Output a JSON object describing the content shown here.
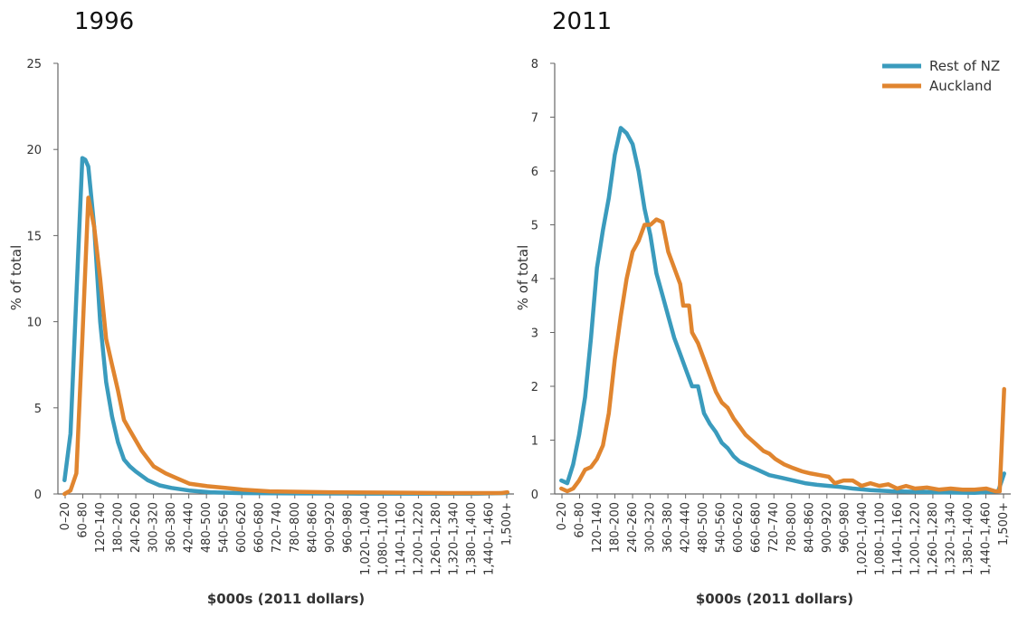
{
  "legend": {
    "entries": [
      {
        "label": "Rest of NZ",
        "color": "#3a9bbd"
      },
      {
        "label": "Auckland",
        "color": "#e0852f"
      }
    ]
  },
  "chart_data": [
    {
      "type": "line",
      "title": "1996",
      "xlabel": "$000s (2011 dollars)",
      "ylabel": "% of total",
      "ylim": [
        0,
        25
      ],
      "yticks": [
        0,
        5,
        10,
        15,
        20,
        25
      ],
      "tick_labels": [
        "0–20",
        "60–80",
        "120–140",
        "180–200",
        "240–260",
        "300–320",
        "360–380",
        "420–440",
        "480–500",
        "540–560",
        "600–620",
        "660–680",
        "720–740",
        "780–800",
        "840–860",
        "900–920",
        "960–980",
        "1,020–1,040",
        "1,080–1,100",
        "1,140–1,160",
        "1,200–1,220",
        "1,260–1,280",
        "1,320–1,340",
        "1,380–1,400",
        "1,440–1,460",
        "1,500+"
      ],
      "grid": false,
      "series": [
        {
          "name": "Rest of NZ",
          "color": "#3a9bbd",
          "points": [
            [
              10,
              0.8
            ],
            [
              30,
              3.5
            ],
            [
              50,
              11.5
            ],
            [
              70,
              19.5
            ],
            [
              80,
              19.4
            ],
            [
              90,
              19.0
            ],
            [
              110,
              15.5
            ],
            [
              130,
              10.0
            ],
            [
              150,
              6.5
            ],
            [
              170,
              4.5
            ],
            [
              190,
              3.0
            ],
            [
              210,
              2.0
            ],
            [
              230,
              1.6
            ],
            [
              250,
              1.3
            ],
            [
              290,
              0.8
            ],
            [
              330,
              0.5
            ],
            [
              370,
              0.35
            ],
            [
              430,
              0.2
            ],
            [
              500,
              0.1
            ],
            [
              600,
              0.05
            ],
            [
              800,
              0.03
            ],
            [
              1000,
              0.02
            ],
            [
              1200,
              0.02
            ],
            [
              1400,
              0.02
            ],
            [
              1500,
              0.05
            ]
          ]
        },
        {
          "name": "Auckland",
          "color": "#e0852f",
          "points": [
            [
              10,
              0.0
            ],
            [
              30,
              0.2
            ],
            [
              50,
              1.2
            ],
            [
              70,
              9.0
            ],
            [
              90,
              17.2
            ],
            [
              110,
              15.5
            ],
            [
              130,
              12.5
            ],
            [
              150,
              9.0
            ],
            [
              170,
              7.5
            ],
            [
              190,
              6.0
            ],
            [
              210,
              4.3
            ],
            [
              230,
              3.7
            ],
            [
              270,
              2.5
            ],
            [
              310,
              1.6
            ],
            [
              350,
              1.2
            ],
            [
              390,
              0.9
            ],
            [
              430,
              0.6
            ],
            [
              490,
              0.45
            ],
            [
              550,
              0.35
            ],
            [
              610,
              0.25
            ],
            [
              700,
              0.15
            ],
            [
              900,
              0.1
            ],
            [
              1100,
              0.08
            ],
            [
              1300,
              0.05
            ],
            [
              1480,
              0.05
            ],
            [
              1500,
              0.1
            ]
          ]
        }
      ]
    },
    {
      "type": "line",
      "title": "2011",
      "xlabel": "$000s (2011 dollars)",
      "ylabel": "% of total",
      "ylim": [
        0,
        8
      ],
      "yticks": [
        0,
        1,
        2,
        3,
        4,
        5,
        6,
        7,
        8
      ],
      "tick_labels": [
        "0–20",
        "60–80",
        "120–140",
        "180–200",
        "240–260",
        "300–320",
        "360–380",
        "420–440",
        "480–500",
        "540–560",
        "600–620",
        "660–680",
        "720–740",
        "780–800",
        "840–860",
        "900–920",
        "960–980",
        "1,020–1,040",
        "1,080–1,100",
        "1,140–1,160",
        "1,200–1,220",
        "1,260–1,280",
        "1,320–1,340",
        "1,380–1,400",
        "1,440–1,460",
        "1,500+"
      ],
      "grid": false,
      "legend_position": "top-right",
      "series": [
        {
          "name": "Rest of NZ",
          "color": "#3a9bbd",
          "points": [
            [
              10,
              0.25
            ],
            [
              30,
              0.2
            ],
            [
              50,
              0.55
            ],
            [
              70,
              1.1
            ],
            [
              90,
              1.8
            ],
            [
              110,
              2.9
            ],
            [
              130,
              4.2
            ],
            [
              150,
              4.9
            ],
            [
              170,
              5.5
            ],
            [
              190,
              6.3
            ],
            [
              210,
              6.8
            ],
            [
              230,
              6.7
            ],
            [
              250,
              6.5
            ],
            [
              270,
              6.0
            ],
            [
              290,
              5.3
            ],
            [
              310,
              4.8
            ],
            [
              330,
              4.1
            ],
            [
              350,
              3.7
            ],
            [
              370,
              3.3
            ],
            [
              390,
              2.9
            ],
            [
              410,
              2.6
            ],
            [
              430,
              2.3
            ],
            [
              450,
              2.0
            ],
            [
              470,
              2.0
            ],
            [
              490,
              1.5
            ],
            [
              510,
              1.3
            ],
            [
              530,
              1.15
            ],
            [
              550,
              0.95
            ],
            [
              570,
              0.85
            ],
            [
              590,
              0.7
            ],
            [
              610,
              0.6
            ],
            [
              630,
              0.55
            ],
            [
              650,
              0.5
            ],
            [
              670,
              0.45
            ],
            [
              690,
              0.4
            ],
            [
              710,
              0.35
            ],
            [
              750,
              0.3
            ],
            [
              790,
              0.25
            ],
            [
              830,
              0.2
            ],
            [
              870,
              0.17
            ],
            [
              910,
              0.15
            ],
            [
              950,
              0.13
            ],
            [
              990,
              0.1
            ],
            [
              1050,
              0.07
            ],
            [
              1120,
              0.05
            ],
            [
              1200,
              0.04
            ],
            [
              1300,
              0.03
            ],
            [
              1400,
              0.02
            ],
            [
              1480,
              0.05
            ],
            [
              1500,
              0.38
            ]
          ]
        },
        {
          "name": "Auckland",
          "color": "#e0852f",
          "points": [
            [
              10,
              0.1
            ],
            [
              30,
              0.05
            ],
            [
              50,
              0.1
            ],
            [
              70,
              0.25
            ],
            [
              90,
              0.45
            ],
            [
              110,
              0.5
            ],
            [
              130,
              0.65
            ],
            [
              150,
              0.9
            ],
            [
              170,
              1.5
            ],
            [
              190,
              2.5
            ],
            [
              210,
              3.3
            ],
            [
              230,
              4.0
            ],
            [
              250,
              4.5
            ],
            [
              270,
              4.7
            ],
            [
              290,
              5.0
            ],
            [
              310,
              5.0
            ],
            [
              330,
              5.1
            ],
            [
              350,
              5.05
            ],
            [
              370,
              4.5
            ],
            [
              390,
              4.2
            ],
            [
              410,
              3.9
            ],
            [
              420,
              3.5
            ],
            [
              440,
              3.5
            ],
            [
              450,
              3.0
            ],
            [
              470,
              2.8
            ],
            [
              490,
              2.5
            ],
            [
              510,
              2.2
            ],
            [
              530,
              1.9
            ],
            [
              550,
              1.7
            ],
            [
              570,
              1.6
            ],
            [
              590,
              1.4
            ],
            [
              610,
              1.25
            ],
            [
              630,
              1.1
            ],
            [
              650,
              1.0
            ],
            [
              670,
              0.9
            ],
            [
              690,
              0.8
            ],
            [
              710,
              0.75
            ],
            [
              730,
              0.65
            ],
            [
              760,
              0.55
            ],
            [
              790,
              0.48
            ],
            [
              820,
              0.42
            ],
            [
              850,
              0.38
            ],
            [
              880,
              0.35
            ],
            [
              910,
              0.32
            ],
            [
              930,
              0.2
            ],
            [
              960,
              0.25
            ],
            [
              990,
              0.25
            ],
            [
              1020,
              0.15
            ],
            [
              1050,
              0.2
            ],
            [
              1080,
              0.15
            ],
            [
              1110,
              0.18
            ],
            [
              1140,
              0.1
            ],
            [
              1170,
              0.15
            ],
            [
              1200,
              0.1
            ],
            [
              1240,
              0.12
            ],
            [
              1280,
              0.08
            ],
            [
              1320,
              0.1
            ],
            [
              1360,
              0.08
            ],
            [
              1400,
              0.08
            ],
            [
              1440,
              0.1
            ],
            [
              1470,
              0.05
            ],
            [
              1485,
              0.05
            ],
            [
              1500,
              1.95
            ]
          ]
        }
      ]
    }
  ]
}
